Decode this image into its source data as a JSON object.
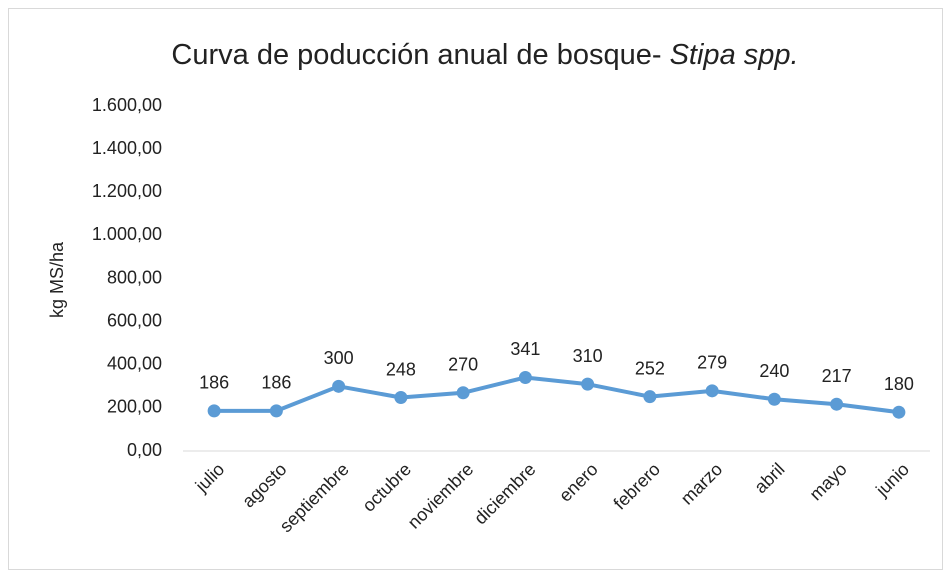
{
  "chart_data": {
    "type": "line",
    "title": [
      "Curva de poducción anual de bosque- ",
      "Stipa spp."
    ],
    "y_label": "kg MS/ha",
    "categories": [
      "julio",
      "agosto",
      "septiembre",
      "octubre",
      "noviembre",
      "diciembre",
      "enero",
      "febrero",
      "marzo",
      "abril",
      "mayo",
      "junio"
    ],
    "series": [
      {
        "name": "Stipa spp.",
        "color": "#5b9bd5",
        "values": [
          186,
          186,
          300,
          248,
          270,
          341,
          310,
          252,
          279,
          240,
          217,
          180
        ]
      }
    ],
    "ylim": [
      0,
      1600
    ],
    "yticks": [
      {
        "value": 0,
        "label": "0,00"
      },
      {
        "value": 200,
        "label": "200,00"
      },
      {
        "value": 400,
        "label": "400,00"
      },
      {
        "value": 600,
        "label": "600,00"
      },
      {
        "value": 800,
        "label": "800,00"
      },
      {
        "value": 1000,
        "label": "1.000,00"
      },
      {
        "value": 1200,
        "label": "1.200,00"
      },
      {
        "value": 1400,
        "label": "1.400,00"
      },
      {
        "value": 1600,
        "label": "1.600,00"
      }
    ],
    "grid": false
  }
}
